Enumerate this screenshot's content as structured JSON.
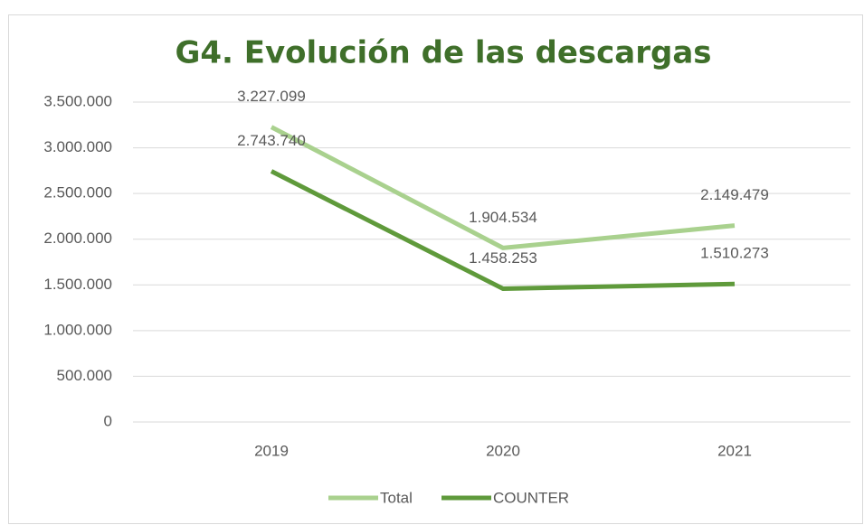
{
  "chart_data": {
    "type": "line",
    "title": "G4. Evolución de las descargas",
    "categories": [
      "2019",
      "2020",
      "2021"
    ],
    "series": [
      {
        "name": "Total",
        "color": "#a9d18e",
        "values": [
          3227099,
          1904534,
          2149479
        ],
        "value_labels": [
          "3.227.099",
          "1.904.534",
          "2.149.479"
        ]
      },
      {
        "name": "COUNTER",
        "color": "#5f9a3b",
        "values": [
          2743740,
          1458253,
          1510273
        ],
        "value_labels": [
          "2.743.740",
          "1.458.253",
          "1.510.273"
        ]
      }
    ],
    "ylim": [
      0,
      3500000
    ],
    "yticks": [
      0,
      {
        "value": 500000,
        "label": "500.000"
      },
      {
        "value": 1000000,
        "label": "1.000.000"
      },
      {
        "value": 1500000,
        "label": "1.500.000"
      },
      {
        "value": 2000000,
        "label": "2.000.000"
      },
      {
        "value": 2500000,
        "label": "2.500.000"
      },
      {
        "value": 3000000,
        "label": "3.000.000"
      },
      {
        "value": 3500000,
        "label": "3.500.000"
      }
    ],
    "grid": true,
    "legend": "bottom"
  }
}
